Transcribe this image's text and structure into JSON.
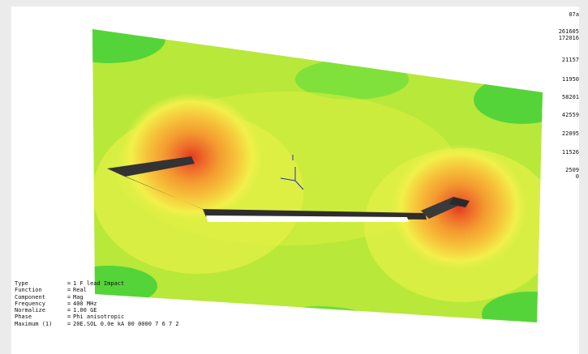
{
  "legend": {
    "labels": [
      "07a",
      "261605",
      "172016",
      "21157",
      "11950",
      "58201",
      "42559",
      "22095",
      "11526",
      "2509",
      "0"
    ]
  },
  "info": {
    "rows": [
      {
        "key": "Type",
        "value": "1 F   lead Impact"
      },
      {
        "key": "Function",
        "value": "Real"
      },
      {
        "key": "Component",
        "value": "Mag"
      },
      {
        "key": "Frequency",
        "value": "400 MHz"
      },
      {
        "key": "Normalize",
        "value": "1.00 GE"
      },
      {
        "key": "Phase",
        "value": "Phi  anisotropic"
      },
      {
        "key": "Maximum  (1)",
        "value": "20E.SOL  0.0e kA  00 0000  7  6  7  2"
      }
    ]
  },
  "colors": {
    "field_base": "#b8e83a",
    "field_edge": "#4ad23a",
    "hot_ring1": "#f2f04a",
    "hot_ring2": "#f6c23a",
    "hot_ring3": "#f39a30",
    "hot_ring4": "#ee6a2a",
    "hot_core": "#e23a20",
    "antenna": "#333333"
  },
  "icons": {
    "axis_triad": "axis-triad-icon"
  }
}
